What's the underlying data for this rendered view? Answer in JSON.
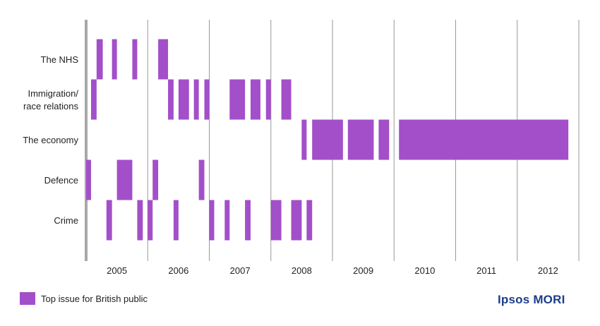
{
  "chart_data": {
    "type": "timeline",
    "x_range": [
      2004.5,
      2012.5
    ],
    "years": [
      "2005",
      "2006",
      "2007",
      "2008",
      "2009",
      "2010",
      "2011",
      "2012"
    ],
    "categories": [
      "The NHS",
      "Immigration/\nrace relations",
      "The economy",
      "Defence",
      "Crime"
    ],
    "series_color": "#a34fc9",
    "periods": [
      {
        "category": "The NHS",
        "start": 2004.67,
        "end": 2004.77
      },
      {
        "category": "The NHS",
        "start": 2004.92,
        "end": 2005.0
      },
      {
        "category": "The NHS",
        "start": 2005.25,
        "end": 2005.33
      },
      {
        "category": "The NHS",
        "start": 2005.67,
        "end": 2005.83
      },
      {
        "category": "Immigration/\nrace relations",
        "start": 2004.58,
        "end": 2004.67
      },
      {
        "category": "Immigration/\nrace relations",
        "start": 2005.83,
        "end": 2005.92
      },
      {
        "category": "Immigration/\nrace relations",
        "start": 2006.0,
        "end": 2006.17
      },
      {
        "category": "Immigration/\nrace relations",
        "start": 2006.25,
        "end": 2006.33
      },
      {
        "category": "Immigration/\nrace relations",
        "start": 2006.42,
        "end": 2006.5
      },
      {
        "category": "Immigration/\nrace relations",
        "start": 2006.83,
        "end": 2007.08
      },
      {
        "category": "Immigration/\nrace relations",
        "start": 2007.17,
        "end": 2007.33
      },
      {
        "category": "Immigration/\nrace relations",
        "start": 2007.42,
        "end": 2007.5
      },
      {
        "category": "Immigration/\nrace relations",
        "start": 2007.67,
        "end": 2007.83
      },
      {
        "category": "The economy",
        "start": 2008.0,
        "end": 2008.08
      },
      {
        "category": "The economy",
        "start": 2008.17,
        "end": 2008.67
      },
      {
        "category": "The economy",
        "start": 2008.75,
        "end": 2009.17
      },
      {
        "category": "The economy",
        "start": 2009.25,
        "end": 2009.42
      },
      {
        "category": "The economy",
        "start": 2009.58,
        "end": 2012.33
      },
      {
        "category": "Defence",
        "start": 2004.5,
        "end": 2004.58
      },
      {
        "category": "Defence",
        "start": 2005.0,
        "end": 2005.25
      },
      {
        "category": "Defence",
        "start": 2005.58,
        "end": 2005.67
      },
      {
        "category": "Defence",
        "start": 2006.33,
        "end": 2006.42
      },
      {
        "category": "Crime",
        "start": 2004.83,
        "end": 2004.92
      },
      {
        "category": "Crime",
        "start": 2005.33,
        "end": 2005.42
      },
      {
        "category": "Crime",
        "start": 2005.5,
        "end": 2005.58
      },
      {
        "category": "Crime",
        "start": 2005.92,
        "end": 2006.0
      },
      {
        "category": "Crime",
        "start": 2006.5,
        "end": 2006.58
      },
      {
        "category": "Crime",
        "start": 2006.75,
        "end": 2006.83
      },
      {
        "category": "Crime",
        "start": 2007.08,
        "end": 2007.17
      },
      {
        "category": "Crime",
        "start": 2007.5,
        "end": 2007.67
      },
      {
        "category": "Crime",
        "start": 2007.83,
        "end": 2008.0
      },
      {
        "category": "Crime",
        "start": 2008.08,
        "end": 2008.17
      }
    ],
    "grid": "vertical",
    "legend": {
      "label": "Top issue for British public",
      "placement": "bottom-left"
    }
  },
  "brand": {
    "name": "Ipsos MORI",
    "color": "#1d3c8c"
  }
}
